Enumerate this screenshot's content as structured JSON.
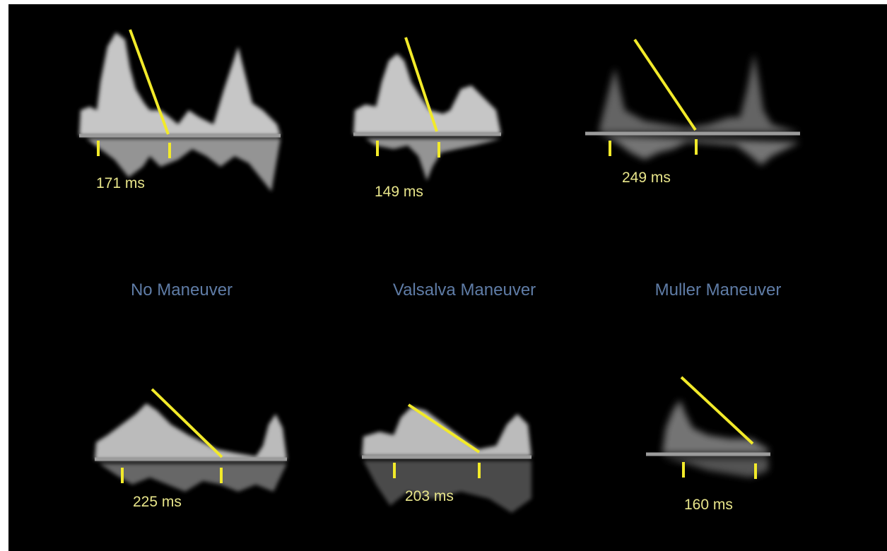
{
  "colors": {
    "background": "#000000",
    "measurement_line": "#f2ea2a",
    "measurement_text": "#e8e58a",
    "caption_text": "#5f7ca6",
    "baseline": "#9b9b9b",
    "doppler_signal": "#e6e6e6"
  },
  "maneuvers": [
    {
      "label": "No Maneuver"
    },
    {
      "label": "Valsalva Maneuver"
    },
    {
      "label": "Muller Maneuver"
    }
  ],
  "panels": [
    {
      "row": "top",
      "maneuver": "No Maneuver",
      "deceleration_time": "171 ms"
    },
    {
      "row": "top",
      "maneuver": "Valsalva Maneuver",
      "deceleration_time": "149 ms"
    },
    {
      "row": "top",
      "maneuver": "Muller Maneuver",
      "deceleration_time": "249 ms"
    },
    {
      "row": "bottom",
      "maneuver": "No Maneuver",
      "deceleration_time": "225 ms"
    },
    {
      "row": "bottom",
      "maneuver": "Valsalva Maneuver",
      "deceleration_time": "203 ms"
    },
    {
      "row": "bottom",
      "maneuver": "Muller Maneuver",
      "deceleration_time": "160 ms"
    }
  ]
}
